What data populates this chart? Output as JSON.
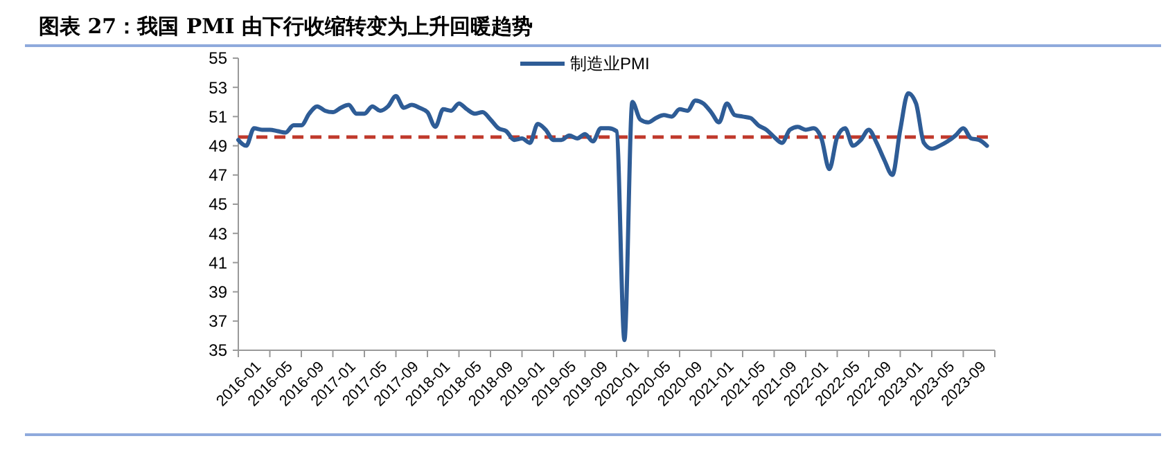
{
  "chart_data": {
    "type": "line",
    "title": "图表 27：我国 PMI 由下行收缩转变为上升回暖趋势",
    "categories": [
      "2016-01",
      null,
      null,
      null,
      "2016-05",
      null,
      null,
      null,
      "2016-09",
      null,
      null,
      null,
      "2017-01",
      null,
      null,
      null,
      "2017-05",
      null,
      null,
      null,
      "2017-09",
      null,
      null,
      null,
      "2018-01",
      null,
      null,
      null,
      "2018-05",
      null,
      null,
      null,
      "2018-09",
      null,
      null,
      null,
      "2019-01",
      null,
      null,
      null,
      "2019-05",
      null,
      null,
      null,
      "2019-09",
      null,
      null,
      null,
      "2020-01",
      null,
      null,
      null,
      "2020-05",
      null,
      null,
      null,
      "2020-09",
      null,
      null,
      null,
      "2021-01",
      null,
      null,
      null,
      "2021-05",
      null,
      null,
      null,
      "2021-09",
      null,
      null,
      null,
      "2022-01",
      null,
      null,
      null,
      "2022-05",
      null,
      null,
      null,
      "2022-09",
      null,
      null,
      null,
      "2023-01",
      null,
      null,
      null,
      "2023-05",
      null,
      null,
      null,
      "2023-09",
      null,
      null,
      null
    ],
    "series": [
      {
        "name": "制造业PMI",
        "color": "#2e5c96",
        "values": [
          49.4,
          49.0,
          50.2,
          50.1,
          50.1,
          50.0,
          49.9,
          50.4,
          50.4,
          51.2,
          51.7,
          51.4,
          51.3,
          51.6,
          51.8,
          51.2,
          51.2,
          51.7,
          51.4,
          51.7,
          52.4,
          51.6,
          51.8,
          51.6,
          51.3,
          50.3,
          51.5,
          51.4,
          51.9,
          51.5,
          51.2,
          51.3,
          50.8,
          50.2,
          50.0,
          49.4,
          49.5,
          49.2,
          50.5,
          50.1,
          49.4,
          49.4,
          49.7,
          49.5,
          49.8,
          49.3,
          50.2,
          50.2,
          50.0,
          35.7,
          52.0,
          50.8,
          50.6,
          50.9,
          51.1,
          51.0,
          51.5,
          51.4,
          52.1,
          51.9,
          51.3,
          50.6,
          51.9,
          51.1,
          51.0,
          50.9,
          50.4,
          50.1,
          49.6,
          49.2,
          50.1,
          50.3,
          50.1,
          50.2,
          49.5,
          47.4,
          49.6,
          50.2,
          49.0,
          49.4,
          50.1,
          49.2,
          48.0,
          47.0,
          50.1,
          52.6,
          51.9,
          49.2,
          48.8,
          49.0,
          49.3,
          49.7,
          50.2,
          49.5,
          49.4,
          49.0
        ]
      }
    ],
    "ylim": [
      35,
      55
    ],
    "yticks": [
      35,
      37,
      39,
      41,
      43,
      45,
      47,
      49,
      51,
      53,
      55
    ],
    "ref_lines": [
      {
        "axis": "y",
        "value": 49.6,
        "color": "#c0392b",
        "line_style": "dashed"
      }
    ],
    "legend": "top",
    "grid": false
  }
}
